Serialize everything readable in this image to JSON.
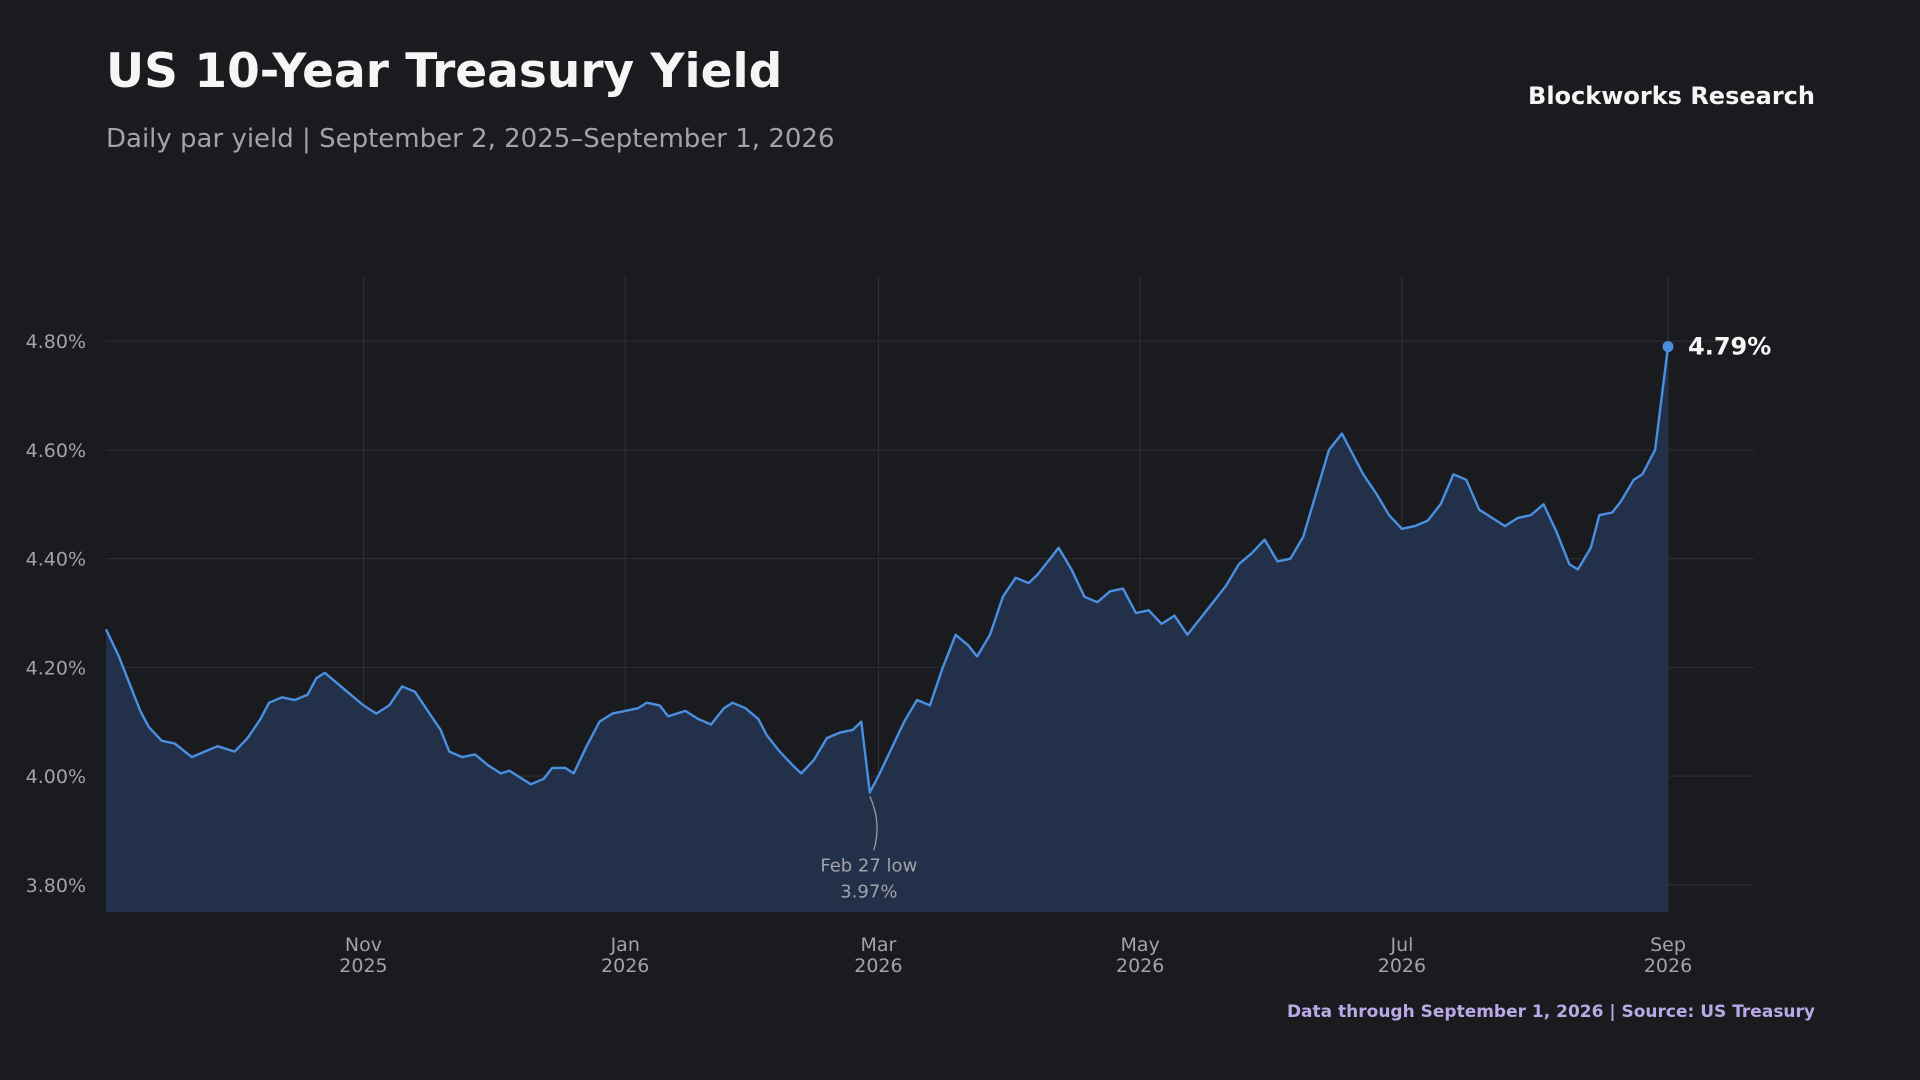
{
  "header": {
    "title": "US 10-Year Treasury Yield",
    "subtitle": "Daily par yield | September 2, 2025–September 1, 2026",
    "brand": "Blockworks Research"
  },
  "footer": {
    "text": "Data through September 1, 2026  |  Source: US Treasury"
  },
  "colors": {
    "background": "#1a1b1f",
    "line": "#4a8fe0",
    "fill": "#22304a",
    "grid": "#2f3036",
    "footer": "#b9a9e6"
  },
  "chart_data": {
    "type": "area",
    "title": "US 10-Year Treasury Yield",
    "xlabel": "",
    "ylabel": "",
    "x_range": [
      "2025-09-02",
      "2026-09-01"
    ],
    "ylim": [
      3.75,
      4.92
    ],
    "grid": true,
    "y_ticks": [
      3.8,
      4.0,
      4.2,
      4.4,
      4.6,
      4.8
    ],
    "y_tick_labels": [
      "3.80%",
      "4.00%",
      "4.20%",
      "4.40%",
      "4.60%",
      "4.80%"
    ],
    "x_ticks": [
      {
        "date": "2025-11-01",
        "label": [
          "Nov",
          "2025"
        ]
      },
      {
        "date": "2026-01-01",
        "label": [
          "Jan",
          "2026"
        ]
      },
      {
        "date": "2026-03-01",
        "label": [
          "Mar",
          "2026"
        ]
      },
      {
        "date": "2026-05-01",
        "label": [
          "May",
          "2026"
        ]
      },
      {
        "date": "2026-07-01",
        "label": [
          "Jul",
          "2026"
        ]
      },
      {
        "date": "2026-09-01",
        "label": [
          "Sep",
          "2026"
        ]
      }
    ],
    "series": [
      {
        "points": [
          [
            "2025-09-02",
            4.27
          ],
          [
            "2025-09-05",
            4.22
          ],
          [
            "2025-09-08",
            4.16
          ],
          [
            "2025-09-10",
            4.12
          ],
          [
            "2025-09-12",
            4.09
          ],
          [
            "2025-09-15",
            4.065
          ],
          [
            "2025-09-18",
            4.06
          ],
          [
            "2025-09-22",
            4.035
          ],
          [
            "2025-09-25",
            4.045
          ],
          [
            "2025-09-28",
            4.055
          ],
          [
            "2025-10-02",
            4.045
          ],
          [
            "2025-10-05",
            4.07
          ],
          [
            "2025-10-08",
            4.105
          ],
          [
            "2025-10-10",
            4.135
          ],
          [
            "2025-10-13",
            4.145
          ],
          [
            "2025-10-16",
            4.14
          ],
          [
            "2025-10-19",
            4.15
          ],
          [
            "2025-10-21",
            4.18
          ],
          [
            "2025-10-23",
            4.19
          ],
          [
            "2025-10-26",
            4.17
          ],
          [
            "2025-10-29",
            4.15
          ],
          [
            "2025-11-01",
            4.13
          ],
          [
            "2025-11-04",
            4.115
          ],
          [
            "2025-11-07",
            4.13
          ],
          [
            "2025-11-10",
            4.165
          ],
          [
            "2025-11-13",
            4.155
          ],
          [
            "2025-11-16",
            4.12
          ],
          [
            "2025-11-19",
            4.085
          ],
          [
            "2025-11-21",
            4.045
          ],
          [
            "2025-11-24",
            4.035
          ],
          [
            "2025-11-27",
            4.04
          ],
          [
            "2025-11-30",
            4.02
          ],
          [
            "2025-12-03",
            4.005
          ],
          [
            "2025-12-05",
            4.01
          ],
          [
            "2025-12-08",
            3.995
          ],
          [
            "2025-12-10",
            3.985
          ],
          [
            "2025-12-13",
            3.995
          ],
          [
            "2025-12-15",
            4.015
          ],
          [
            "2025-12-18",
            4.015
          ],
          [
            "2025-12-20",
            4.005
          ],
          [
            "2025-12-23",
            4.055
          ],
          [
            "2025-12-26",
            4.1
          ],
          [
            "2025-12-29",
            4.115
          ],
          [
            "2026-01-01",
            4.12
          ],
          [
            "2026-01-04",
            4.125
          ],
          [
            "2026-01-06",
            4.135
          ],
          [
            "2026-01-09",
            4.13
          ],
          [
            "2026-01-11",
            4.11
          ],
          [
            "2026-01-13",
            4.115
          ],
          [
            "2026-01-15",
            4.12
          ],
          [
            "2026-01-18",
            4.105
          ],
          [
            "2026-01-21",
            4.095
          ],
          [
            "2026-01-24",
            4.125
          ],
          [
            "2026-01-26",
            4.135
          ],
          [
            "2026-01-29",
            4.125
          ],
          [
            "2026-02-01",
            4.105
          ],
          [
            "2026-02-03",
            4.075
          ],
          [
            "2026-02-06",
            4.045
          ],
          [
            "2026-02-09",
            4.02
          ],
          [
            "2026-02-11",
            4.005
          ],
          [
            "2026-02-14",
            4.03
          ],
          [
            "2026-02-17",
            4.07
          ],
          [
            "2026-02-20",
            4.08
          ],
          [
            "2026-02-23",
            4.085
          ],
          [
            "2026-02-25",
            4.1
          ],
          [
            "2026-02-27",
            3.97
          ],
          [
            "2026-03-01",
            4.0
          ],
          [
            "2026-03-04",
            4.05
          ],
          [
            "2026-03-07",
            4.1
          ],
          [
            "2026-03-10",
            4.14
          ],
          [
            "2026-03-13",
            4.13
          ],
          [
            "2026-03-16",
            4.2
          ],
          [
            "2026-03-19",
            4.26
          ],
          [
            "2026-03-22",
            4.24
          ],
          [
            "2026-03-24",
            4.22
          ],
          [
            "2026-03-27",
            4.26
          ],
          [
            "2026-03-30",
            4.33
          ],
          [
            "2026-04-02",
            4.365
          ],
          [
            "2026-04-05",
            4.355
          ],
          [
            "2026-04-07",
            4.37
          ],
          [
            "2026-04-10",
            4.4
          ],
          [
            "2026-04-12",
            4.42
          ],
          [
            "2026-04-15",
            4.38
          ],
          [
            "2026-04-18",
            4.33
          ],
          [
            "2026-04-21",
            4.32
          ],
          [
            "2026-04-24",
            4.34
          ],
          [
            "2026-04-27",
            4.345
          ],
          [
            "2026-04-30",
            4.3
          ],
          [
            "2026-05-03",
            4.305
          ],
          [
            "2026-05-06",
            4.28
          ],
          [
            "2026-05-09",
            4.295
          ],
          [
            "2026-05-12",
            4.26
          ],
          [
            "2026-05-15",
            4.29
          ],
          [
            "2026-05-18",
            4.32
          ],
          [
            "2026-05-21",
            4.35
          ],
          [
            "2026-05-24",
            4.39
          ],
          [
            "2026-05-27",
            4.41
          ],
          [
            "2026-05-30",
            4.435
          ],
          [
            "2026-06-02",
            4.395
          ],
          [
            "2026-06-05",
            4.4
          ],
          [
            "2026-06-08",
            4.44
          ],
          [
            "2026-06-11",
            4.52
          ],
          [
            "2026-06-14",
            4.6
          ],
          [
            "2026-06-17",
            4.63
          ],
          [
            "2026-06-19",
            4.6
          ],
          [
            "2026-06-22",
            4.555
          ],
          [
            "2026-06-25",
            4.52
          ],
          [
            "2026-06-28",
            4.48
          ],
          [
            "2026-07-01",
            4.455
          ],
          [
            "2026-07-04",
            4.46
          ],
          [
            "2026-07-07",
            4.47
          ],
          [
            "2026-07-10",
            4.5
          ],
          [
            "2026-07-13",
            4.555
          ],
          [
            "2026-07-16",
            4.545
          ],
          [
            "2026-07-19",
            4.49
          ],
          [
            "2026-07-22",
            4.475
          ],
          [
            "2026-07-25",
            4.46
          ],
          [
            "2026-07-28",
            4.475
          ],
          [
            "2026-07-31",
            4.48
          ],
          [
            "2026-08-03",
            4.5
          ],
          [
            "2026-08-06",
            4.45
          ],
          [
            "2026-08-09",
            4.39
          ],
          [
            "2026-08-11",
            4.38
          ],
          [
            "2026-08-14",
            4.42
          ],
          [
            "2026-08-16",
            4.48
          ],
          [
            "2026-08-19",
            4.485
          ],
          [
            "2026-08-21",
            4.505
          ],
          [
            "2026-08-24",
            4.545
          ],
          [
            "2026-08-26",
            4.555
          ],
          [
            "2026-08-29",
            4.6
          ],
          [
            "2026-09-01",
            4.79
          ]
        ]
      }
    ],
    "annotations": [
      {
        "text": [
          "Feb 27 low",
          "3.97%"
        ],
        "x": "2026-02-27",
        "y": 3.97
      },
      {
        "text": [
          "4.79%"
        ],
        "x": "2026-09-01",
        "y": 4.79
      }
    ],
    "legend": "none"
  }
}
